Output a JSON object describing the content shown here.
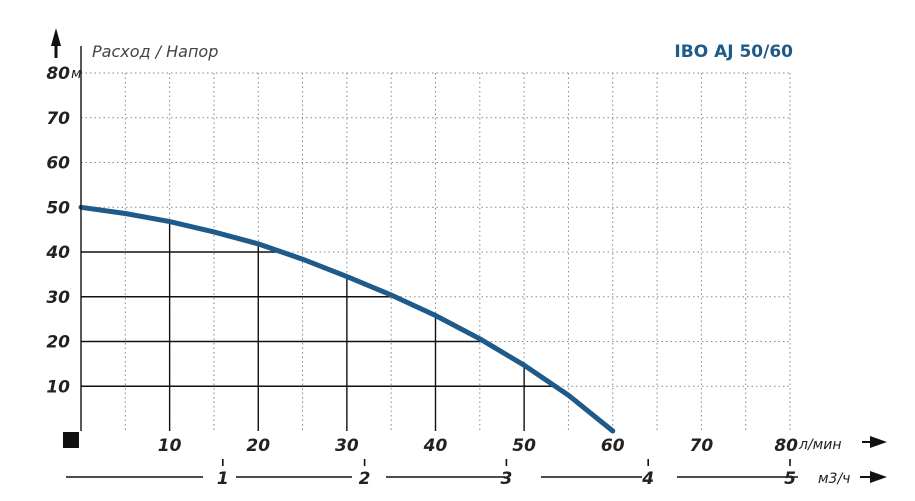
{
  "chart_data": {
    "type": "line",
    "title": "IBO AJ 50/60",
    "ylabel": "Расход / Напор",
    "y_unit": "м",
    "x_unit": "л/мин",
    "x2_unit": "м3/ч",
    "xlim": [
      0,
      80
    ],
    "ylim": [
      0,
      80
    ],
    "x2lim": [
      0,
      5
    ],
    "x_ticks": [
      "10",
      "20",
      "30",
      "40",
      "50",
      "60",
      "70",
      "80"
    ],
    "y_ticks": [
      "10",
      "20",
      "30",
      "40",
      "50",
      "60",
      "70",
      "80"
    ],
    "x2_ticks": [
      "1",
      "2",
      "3",
      "4",
      "5"
    ],
    "grid": true,
    "series": [
      {
        "color": "#1e5b8a",
        "x": [
          0,
          5,
          10,
          15,
          20,
          25,
          30,
          35,
          40,
          45,
          50,
          55,
          60
        ],
        "y": [
          50,
          48.6,
          46.8,
          44.5,
          41.8,
          38.4,
          34.5,
          30.4,
          25.8,
          20.6,
          14.7,
          8.0,
          0
        ]
      }
    ]
  }
}
